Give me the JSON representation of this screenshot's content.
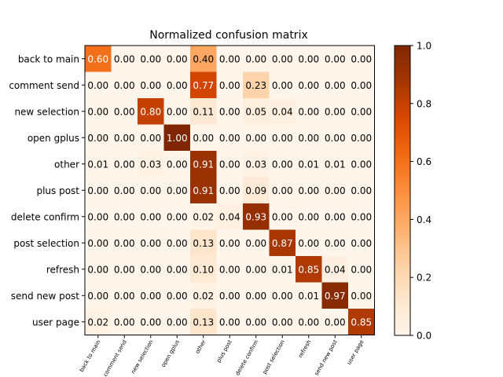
{
  "chart_data": {
    "type": "heatmap",
    "title": "Normalized confusion matrix",
    "xlabel": "",
    "ylabel": "",
    "labels": [
      "back to main",
      "comment send",
      "new selection",
      "open gplus",
      "other",
      "plus post",
      "delete confirm",
      "post selection",
      "refresh",
      "send new post",
      "user page"
    ],
    "matrix": [
      [
        0.6,
        0.0,
        0.0,
        0.0,
        0.4,
        0.0,
        0.0,
        0.0,
        0.0,
        0.0,
        0.0
      ],
      [
        0.0,
        0.0,
        0.0,
        0.0,
        0.77,
        0.0,
        0.23,
        0.0,
        0.0,
        0.0,
        0.0
      ],
      [
        0.0,
        0.0,
        0.8,
        0.0,
        0.11,
        0.0,
        0.05,
        0.04,
        0.0,
        0.0,
        0.0
      ],
      [
        0.0,
        0.0,
        0.0,
        1.0,
        0.0,
        0.0,
        0.0,
        0.0,
        0.0,
        0.0,
        0.0
      ],
      [
        0.01,
        0.0,
        0.03,
        0.0,
        0.91,
        0.0,
        0.03,
        0.0,
        0.01,
        0.01,
        0.0
      ],
      [
        0.0,
        0.0,
        0.0,
        0.0,
        0.91,
        0.0,
        0.09,
        0.0,
        0.0,
        0.0,
        0.0
      ],
      [
        0.0,
        0.0,
        0.0,
        0.0,
        0.02,
        0.04,
        0.93,
        0.0,
        0.0,
        0.0,
        0.0
      ],
      [
        0.0,
        0.0,
        0.0,
        0.0,
        0.13,
        0.0,
        0.0,
        0.87,
        0.0,
        0.0,
        0.0
      ],
      [
        0.0,
        0.0,
        0.0,
        0.0,
        0.1,
        0.0,
        0.0,
        0.01,
        0.85,
        0.04,
        0.0
      ],
      [
        0.0,
        0.0,
        0.0,
        0.0,
        0.02,
        0.0,
        0.0,
        0.0,
        0.01,
        0.97,
        0.0
      ],
      [
        0.02,
        0.0,
        0.0,
        0.0,
        0.13,
        0.0,
        0.0,
        0.0,
        0.0,
        0.0,
        0.85
      ]
    ],
    "colormap": "Oranges",
    "colorbar": {
      "range": [
        0.0,
        1.0
      ],
      "ticks": [
        "0.0",
        "0.2",
        "0.4",
        "0.6",
        "0.8",
        "1.0"
      ]
    }
  }
}
